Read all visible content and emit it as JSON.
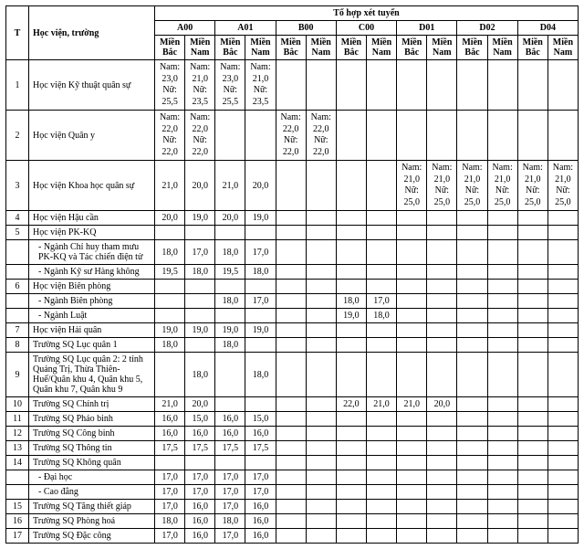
{
  "headers": {
    "t": "T",
    "school": "Học viện, trường",
    "group_top": "Tổ hợp xét tuyển",
    "groups": [
      "A00",
      "A01",
      "B00",
      "C00",
      "D01",
      "D02",
      "D04"
    ],
    "regions": {
      "north": "Miền Bắc",
      "south": "Miền Nam"
    }
  },
  "rows": [
    {
      "t": "1",
      "name": "Học viện Kỹ thuật quân sự",
      "v": [
        "Nam: 23,0 Nữ: 25,5",
        "Nam: 21,0 Nữ: 23,5",
        "Nam: 23,0 Nữ: 25,5",
        "Nam: 21,0 Nữ: 23,5",
        "",
        "",
        "",
        "",
        "",
        "",
        "",
        "",
        "",
        ""
      ]
    },
    {
      "t": "2",
      "name": "Học viện Quân y",
      "v": [
        "Nam: 22,0 Nữ: 22,0",
        "Nam: 22,0 Nữ: 22,0",
        "",
        "",
        "Nam: 22,0 Nữ: 22,0",
        "Nam: 22,0 Nữ: 22,0",
        "",
        "",
        "",
        "",
        "",
        "",
        "",
        ""
      ]
    },
    {
      "t": "3",
      "name": "Học viện Khoa học quân sự",
      "v": [
        "21,0",
        "20,0",
        "21,0",
        "20,0",
        "",
        "",
        "",
        "",
        "Nam: 21,0 Nữ: 25,0",
        "Nam: 21,0 Nữ: 25,0",
        "Nam: 21,0 Nữ: 25,0",
        "Nam: 21,0 Nữ: 25,0",
        "Nam: 21,0 Nữ: 25,0",
        "Nam: 21,0 Nữ: 25,0"
      ]
    },
    {
      "t": "4",
      "name": "Học viện Hậu cần",
      "v": [
        "20,0",
        "19,0",
        "20,0",
        "19,0",
        "",
        "",
        "",
        "",
        "",
        "",
        "",
        "",
        "",
        ""
      ]
    },
    {
      "t": "5",
      "name": "Học viện PK-KQ",
      "v": [
        "",
        "",
        "",
        "",
        "",
        "",
        "",
        "",
        "",
        "",
        "",
        "",
        "",
        ""
      ]
    },
    {
      "t": "",
      "name": "- Ngành Chỉ huy tham mưu PK-KQ và Tác chiến điện tử",
      "indent": true,
      "v": [
        "18,0",
        "17,0",
        "18,0",
        "17,0",
        "",
        "",
        "",
        "",
        "",
        "",
        "",
        "",
        "",
        ""
      ]
    },
    {
      "t": "",
      "name": "- Ngành Kỹ sư Hàng không",
      "indent": true,
      "v": [
        "19,5",
        "18,0",
        "19,5",
        "18,0",
        "",
        "",
        "",
        "",
        "",
        "",
        "",
        "",
        "",
        ""
      ]
    },
    {
      "t": "6",
      "name": "Học viện Biên phòng",
      "v": [
        "",
        "",
        "",
        "",
        "",
        "",
        "",
        "",
        "",
        "",
        "",
        "",
        "",
        ""
      ]
    },
    {
      "t": "",
      "name": "- Ngành Biên phòng",
      "indent": true,
      "v": [
        "",
        "",
        "18,0",
        "17,0",
        "",
        "",
        "18,0",
        "17,0",
        "",
        "",
        "",
        "",
        "",
        ""
      ]
    },
    {
      "t": "",
      "name": "- Ngành Luật",
      "indent": true,
      "v": [
        "",
        "",
        "",
        "",
        "",
        "",
        "19,0",
        "18,0",
        "",
        "",
        "",
        "",
        "",
        ""
      ]
    },
    {
      "t": "7",
      "name": "Học viện Hải quân",
      "v": [
        "19,0",
        "19,0",
        "19,0",
        "19,0",
        "",
        "",
        "",
        "",
        "",
        "",
        "",
        "",
        "",
        ""
      ]
    },
    {
      "t": "8",
      "name": "Trường SQ Lục quân 1",
      "v": [
        "18,0",
        "",
        "18,0",
        "",
        "",
        "",
        "",
        "",
        "",
        "",
        "",
        "",
        "",
        ""
      ]
    },
    {
      "t": "9",
      "name": "Trường SQ Lục quân 2: 2 tỉnh Quảng Trị, Thừa Thiên-Huế/Quân khu 4, Quân khu 5, Quân khu 7, Quân khu 9",
      "v": [
        "",
        "18,0",
        "",
        "18,0",
        "",
        "",
        "",
        "",
        "",
        "",
        "",
        "",
        "",
        ""
      ]
    },
    {
      "t": "10",
      "name": "Trường SQ Chính trị",
      "v": [
        "21,0",
        "20,0",
        "",
        "",
        "",
        "",
        "22,0",
        "21,0",
        "21,0",
        "20,0",
        "",
        "",
        "",
        ""
      ]
    },
    {
      "t": "11",
      "name": "Trường SQ Pháo binh",
      "v": [
        "16,0",
        "15,0",
        "16,0",
        "15,0",
        "",
        "",
        "",
        "",
        "",
        "",
        "",
        "",
        "",
        ""
      ]
    },
    {
      "t": "12",
      "name": "Trường SQ Công binh",
      "v": [
        "16,0",
        "16,0",
        "16,0",
        "16,0",
        "",
        "",
        "",
        "",
        "",
        "",
        "",
        "",
        "",
        ""
      ]
    },
    {
      "t": "13",
      "name": "Trường SQ Thông tin",
      "v": [
        "17,5",
        "17,5",
        "17,5",
        "17,5",
        "",
        "",
        "",
        "",
        "",
        "",
        "",
        "",
        "",
        ""
      ]
    },
    {
      "t": "14",
      "name": "Trường SQ Không quân",
      "v": [
        "",
        "",
        "",
        "",
        "",
        "",
        "",
        "",
        "",
        "",
        "",
        "",
        "",
        ""
      ]
    },
    {
      "t": "",
      "name": "- Đại học",
      "indent": true,
      "v": [
        "17,0",
        "17,0",
        "17,0",
        "17,0",
        "",
        "",
        "",
        "",
        "",
        "",
        "",
        "",
        "",
        ""
      ]
    },
    {
      "t": "",
      "name": "- Cao đẳng",
      "indent": true,
      "v": [
        "17,0",
        "17,0",
        "17,0",
        "17,0",
        "",
        "",
        "",
        "",
        "",
        "",
        "",
        "",
        "",
        ""
      ]
    },
    {
      "t": "15",
      "name": "Trường SQ Tăng thiết giáp",
      "v": [
        "17,0",
        "16,0",
        "17,0",
        "16,0",
        "",
        "",
        "",
        "",
        "",
        "",
        "",
        "",
        "",
        ""
      ]
    },
    {
      "t": "16",
      "name": "Trường SQ Phòng hoá",
      "v": [
        "18,0",
        "16,0",
        "18,0",
        "16,0",
        "",
        "",
        "",
        "",
        "",
        "",
        "",
        "",
        "",
        ""
      ]
    },
    {
      "t": "17",
      "name": "Trường SQ Đặc công",
      "v": [
        "17,0",
        "16,0",
        "17,0",
        "16,0",
        "",
        "",
        "",
        "",
        "",
        "",
        "",
        "",
        "",
        ""
      ]
    }
  ]
}
